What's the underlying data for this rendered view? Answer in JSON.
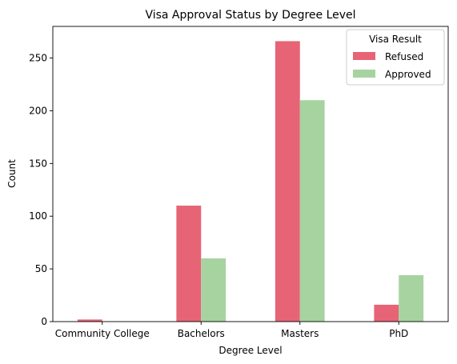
{
  "chart_data": {
    "type": "bar",
    "title": "Visa Approval Status by Degree Level",
    "xlabel": "Degree Level",
    "ylabel": "Count",
    "categories": [
      "Community College",
      "Bachelors",
      "Masters",
      "PhD"
    ],
    "series": [
      {
        "name": "Refused",
        "values": [
          2,
          110,
          266,
          16
        ],
        "color": "#e66476"
      },
      {
        "name": "Approved",
        "values": [
          0,
          60,
          210,
          44
        ],
        "color": "#a7d3a0"
      }
    ],
    "ylim": [
      0,
      280
    ],
    "yticks": [
      0,
      50,
      100,
      150,
      200,
      250
    ],
    "grid": false,
    "legend": {
      "title": "Visa Result",
      "position": "top-right"
    }
  }
}
